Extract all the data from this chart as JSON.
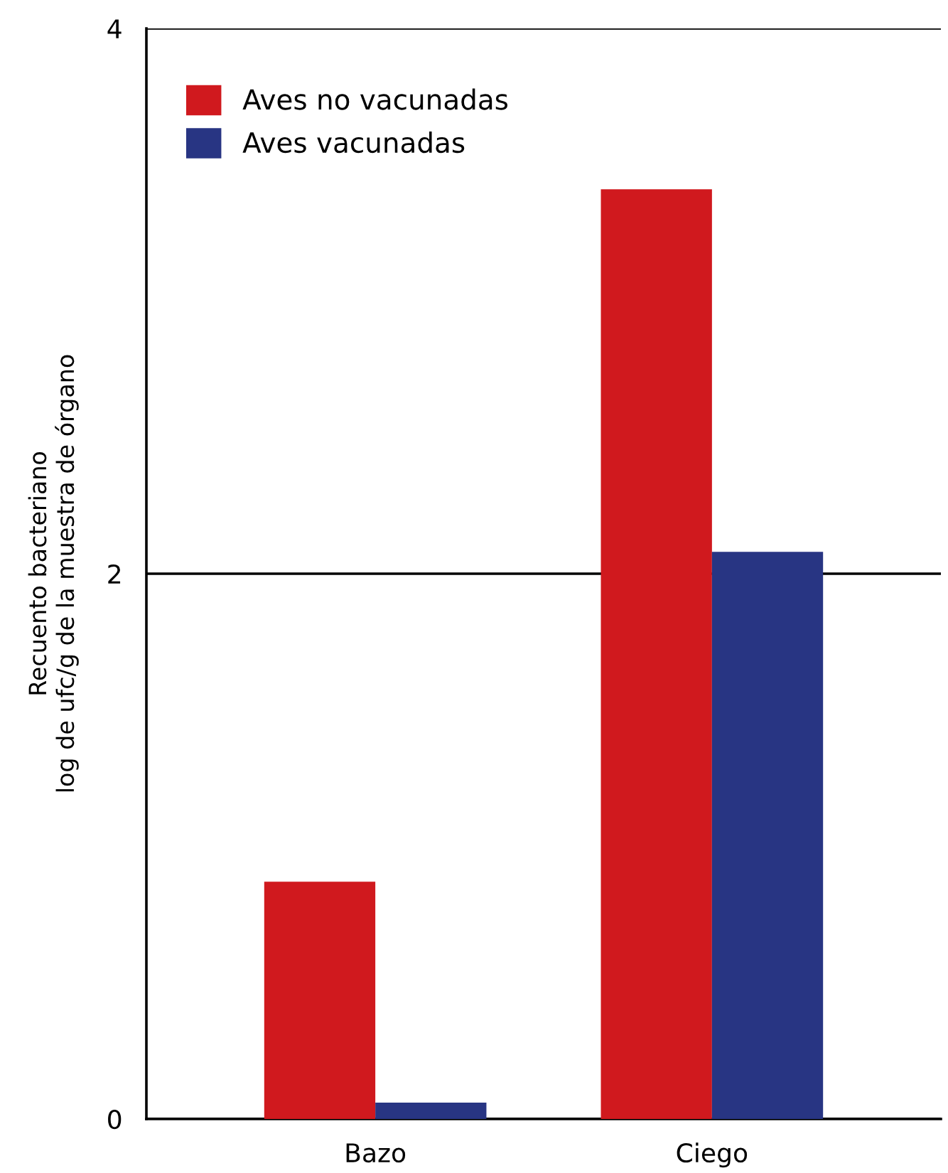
{
  "chart_data": {
    "type": "bar",
    "ylabel": "Recuento bacteriano\nlog de ufc/g de la muestra de órgano",
    "categories": [
      "Bazo",
      "Ciego"
    ],
    "series": [
      {
        "name": "Aves no vacunadas",
        "color": "#d0191e",
        "values": [
          0.87,
          3.41
        ]
      },
      {
        "name": "Aves vacunadas",
        "color": "#283583",
        "values": [
          0.06,
          2.08
        ]
      }
    ],
    "ylim": [
      0,
      4
    ],
    "yticks": [
      0,
      2,
      4
    ],
    "grid": "y",
    "legend": "top left"
  }
}
